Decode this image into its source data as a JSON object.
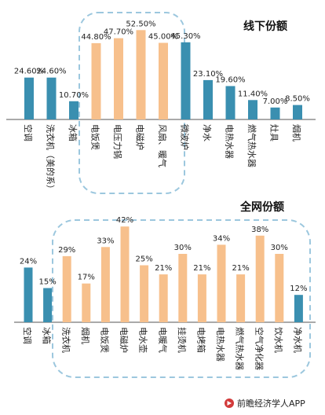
{
  "chart_data": [
    {
      "type": "bar",
      "title": "线下份额",
      "categories": [
        "空调",
        "洗衣机（美的系）",
        "冰箱",
        "电饭煲",
        "电压力锅",
        "电磁炉",
        "风扇、暖气",
        "微波炉",
        "净水",
        "电热水器",
        "燃气热水器",
        "灶具",
        "烟机"
      ],
      "values": [
        24.6,
        24.6,
        10.7,
        44.8,
        47.7,
        52.5,
        45.0,
        45.3,
        23.1,
        19.6,
        11.4,
        7.0,
        8.5
      ],
      "value_labels": [
        "24.60%",
        "24.60%",
        "10.70%",
        "44.80%",
        "47.70%",
        "52.50%",
        "45.00%",
        "45.30%",
        "23.10%",
        "19.60%",
        "11.40%",
        "7.00%",
        "8.50%"
      ],
      "highlight": [
        false,
        false,
        false,
        true,
        true,
        true,
        true,
        false,
        false,
        false,
        false,
        false,
        false
      ],
      "ylim": [
        0,
        60
      ],
      "grid": false,
      "legend": "none"
    },
    {
      "type": "bar",
      "title": "全网份额",
      "categories": [
        "空调",
        "冰箱",
        "洗衣机",
        "烟机",
        "电饭煲",
        "电磁炉",
        "电水壶",
        "电暖气",
        "挂烫机",
        "电烤箱",
        "电热水器",
        "燃气热水器",
        "空气净化器",
        "饮水机",
        "净水机"
      ],
      "values": [
        24,
        15,
        29,
        17,
        33,
        42,
        25,
        21,
        30,
        21,
        34,
        21,
        38,
        30,
        12
      ],
      "value_labels": [
        "24%",
        "15%",
        "29%",
        "17%",
        "33%",
        "42%",
        "25%",
        "21%",
        "30%",
        "21%",
        "34%",
        "21%",
        "38%",
        "30%",
        "12%"
      ],
      "highlight": [
        false,
        false,
        true,
        true,
        true,
        true,
        true,
        true,
        true,
        true,
        true,
        true,
        true,
        true,
        false
      ],
      "ylim": [
        0,
        50
      ],
      "grid": false,
      "legend": "none"
    }
  ],
  "colors": {
    "teal": "#3a8fb0",
    "orange": "#f7c08c",
    "frame": "#9cc7de",
    "axis": "#555555",
    "text": "#222222"
  },
  "footer": {
    "text": "前瞻经济学人APP"
  }
}
